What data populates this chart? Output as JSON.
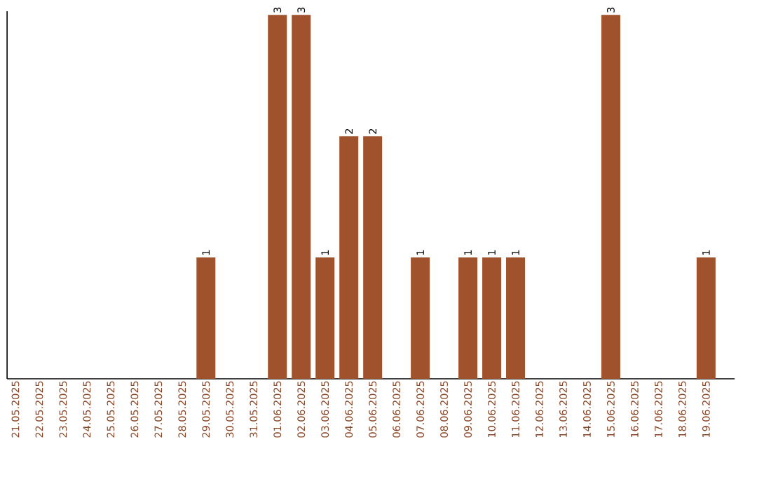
{
  "chart_data": {
    "type": "bar",
    "categories": [
      "21.05.2025",
      "22.05.2025",
      "23.05.2025",
      "24.05.2025",
      "25.05.2025",
      "26.05.2025",
      "27.05.2025",
      "28.05.2025",
      "29.05.2025",
      "30.05.2025",
      "31.05.2025",
      "01.06.2025",
      "02.06.2025",
      "03.06.2025",
      "04.06.2025",
      "05.06.2025",
      "06.06.2025",
      "07.06.2025",
      "08.06.2025",
      "09.06.2025",
      "10.06.2025",
      "11.06.2025",
      "12.06.2025",
      "13.06.2025",
      "14.06.2025",
      "15.06.2025",
      "16.06.2025",
      "17.06.2025",
      "18.06.2025",
      "19.06.2025"
    ],
    "values": [
      0,
      0,
      0,
      0,
      0,
      0,
      0,
      0,
      1,
      0,
      0,
      3,
      3,
      1,
      2,
      2,
      0,
      1,
      0,
      1,
      1,
      1,
      0,
      0,
      0,
      3,
      0,
      0,
      0,
      1
    ],
    "value_labels": [
      null,
      null,
      null,
      null,
      null,
      null,
      null,
      null,
      "1",
      null,
      null,
      "3",
      "3",
      "1",
      "2",
      "2",
      null,
      "1",
      null,
      "1",
      "1",
      "1",
      null,
      null,
      null,
      "3",
      null,
      null,
      null,
      "1"
    ],
    "color": "#a0522d",
    "ylim": [
      0,
      3.03
    ],
    "tick_labels": "x",
    "grid": false
  }
}
